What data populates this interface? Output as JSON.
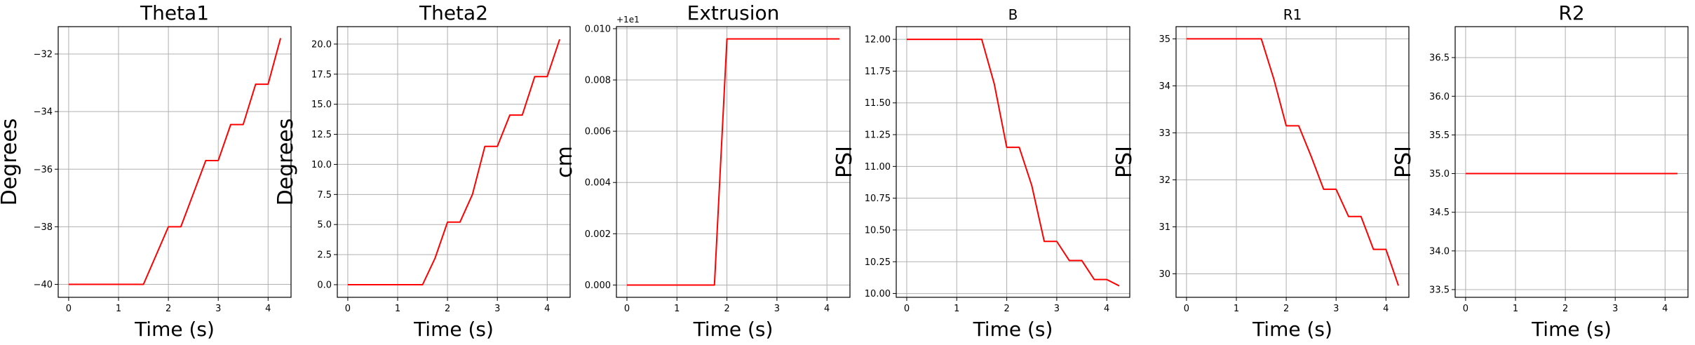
{
  "figure": {
    "line_color": "#ff0000",
    "grid_color": "#b0b0b0",
    "axis_color": "#000000"
  },
  "chart_data": [
    {
      "type": "line",
      "title": "Theta1",
      "xlabel": "Time (s)",
      "ylabel": "Degrees",
      "offset_label": "",
      "xlim": [
        -0.21,
        4.46
      ],
      "ylim": [
        -40.45,
        -31.05
      ],
      "xticks": [
        0,
        1,
        2,
        3,
        4
      ],
      "xtick_labels": [
        "0",
        "1",
        "2",
        "3",
        "4"
      ],
      "yticks": [
        -40,
        -38,
        -36,
        -34,
        -32
      ],
      "ytick_labels": [
        "−40",
        "−38",
        "−36",
        "−34",
        "−32"
      ],
      "grid": true,
      "series": [
        {
          "color": "#ff0000",
          "x": [
            0,
            0.25,
            0.5,
            0.75,
            1.0,
            1.25,
            1.5,
            1.75,
            2.0,
            2.25,
            2.5,
            2.75,
            3.0,
            3.25,
            3.5,
            3.75,
            4.0,
            4.25
          ],
          "y": [
            -40,
            -40,
            -40,
            -40,
            -40,
            -40,
            -40,
            -39.0,
            -38.0,
            -38.0,
            -36.85,
            -35.7,
            -35.7,
            -34.45,
            -34.45,
            -33.05,
            -33.05,
            -31.45
          ]
        }
      ]
    },
    {
      "type": "line",
      "title": "Theta2",
      "xlabel": "Time (s)",
      "ylabel": "Degrees",
      "offset_label": "",
      "xlim": [
        -0.21,
        4.46
      ],
      "ylim": [
        -1.05,
        21.45
      ],
      "xticks": [
        0,
        1,
        2,
        3,
        4
      ],
      "xtick_labels": [
        "0",
        "1",
        "2",
        "3",
        "4"
      ],
      "yticks": [
        0,
        2.5,
        5,
        7.5,
        10,
        12.5,
        15,
        17.5,
        20
      ],
      "ytick_labels": [
        "0.0",
        "2.5",
        "5.0",
        "7.5",
        "10.0",
        "12.5",
        "15.0",
        "17.5",
        "20.0"
      ],
      "grid": true,
      "series": [
        {
          "color": "#ff0000",
          "x": [
            0,
            0.25,
            0.5,
            0.75,
            1.0,
            1.25,
            1.5,
            1.75,
            2.0,
            2.25,
            2.5,
            2.75,
            3.0,
            3.25,
            3.5,
            3.75,
            4.0,
            4.25
          ],
          "y": [
            0,
            0,
            0,
            0,
            0,
            0,
            0,
            2.2,
            5.2,
            5.2,
            7.5,
            11.5,
            11.5,
            14.1,
            14.1,
            17.3,
            17.3,
            20.4
          ]
        }
      ]
    },
    {
      "type": "line",
      "title": "Extrusion",
      "xlabel": "Time (s)",
      "ylabel": "cm",
      "offset_label": "+1e1",
      "xlim": [
        -0.21,
        4.46
      ],
      "ylim": [
        -0.00048,
        0.01008
      ],
      "xticks": [
        0,
        1,
        2,
        3,
        4
      ],
      "xtick_labels": [
        "0",
        "1",
        "2",
        "3",
        "4"
      ],
      "yticks": [
        0,
        0.002,
        0.004,
        0.006,
        0.008,
        0.01
      ],
      "ytick_labels": [
        "0.000",
        "0.002",
        "0.004",
        "0.006",
        "0.008",
        "0.010"
      ],
      "grid": true,
      "series": [
        {
          "color": "#ff0000",
          "x": [
            0,
            0.25,
            0.5,
            0.75,
            1.0,
            1.25,
            1.5,
            1.75,
            2.0,
            2.25,
            2.5,
            2.75,
            3.0,
            3.25,
            3.5,
            3.75,
            4.0,
            4.25
          ],
          "y": [
            0,
            0,
            0,
            0,
            0,
            0,
            0,
            0,
            0.0096,
            0.0096,
            0.0096,
            0.0096,
            0.0096,
            0.0096,
            0.0096,
            0.0096,
            0.0096,
            0.0096
          ]
        }
      ]
    },
    {
      "type": "line",
      "title": "B",
      "xlabel": "Time (s)",
      "ylabel": "PSI",
      "offset_label": "",
      "xlim": [
        -0.21,
        4.46
      ],
      "ylim": [
        9.97,
        12.1
      ],
      "xticks": [
        0,
        1,
        2,
        3,
        4
      ],
      "xtick_labels": [
        "0",
        "1",
        "2",
        "3",
        "4"
      ],
      "yticks": [
        10.0,
        10.25,
        10.5,
        10.75,
        11.0,
        11.25,
        11.5,
        11.75,
        12.0
      ],
      "ytick_labels": [
        "10.00",
        "10.25",
        "10.50",
        "10.75",
        "11.00",
        "11.25",
        "11.50",
        "11.75",
        "12.00"
      ],
      "grid": true,
      "series": [
        {
          "color": "#ff0000",
          "x": [
            0,
            0.25,
            0.5,
            0.75,
            1.0,
            1.25,
            1.5,
            1.75,
            2.0,
            2.25,
            2.5,
            2.75,
            3.0,
            3.25,
            3.5,
            3.75,
            4.0,
            4.25
          ],
          "y": [
            12,
            12,
            12,
            12,
            12,
            12,
            12,
            11.65,
            11.15,
            11.15,
            10.85,
            10.41,
            10.41,
            10.26,
            10.26,
            10.11,
            10.11,
            10.06
          ]
        }
      ]
    },
    {
      "type": "line",
      "title": "R1",
      "xlabel": "Time (s)",
      "ylabel": "PSI",
      "offset_label": "",
      "xlim": [
        -0.21,
        4.46
      ],
      "ylim": [
        29.5,
        35.26
      ],
      "xticks": [
        0,
        1,
        2,
        3,
        4
      ],
      "xtick_labels": [
        "0",
        "1",
        "2",
        "3",
        "4"
      ],
      "yticks": [
        30,
        31,
        32,
        33,
        34,
        35
      ],
      "ytick_labels": [
        "30",
        "31",
        "32",
        "33",
        "34",
        "35"
      ],
      "grid": true,
      "series": [
        {
          "color": "#ff0000",
          "x": [
            0,
            0.25,
            0.5,
            0.75,
            1.0,
            1.25,
            1.5,
            1.75,
            2.0,
            2.25,
            2.5,
            2.75,
            3.0,
            3.25,
            3.5,
            3.75,
            4.0,
            4.25
          ],
          "y": [
            35,
            35,
            35,
            35,
            35,
            35,
            35,
            34.15,
            33.15,
            33.15,
            32.5,
            31.8,
            31.8,
            31.22,
            31.22,
            30.52,
            30.52,
            29.75
          ]
        }
      ]
    },
    {
      "type": "line",
      "title": "R2",
      "xlabel": "Time (s)",
      "ylabel": "PSI",
      "offset_label": "",
      "xlim": [
        -0.21,
        4.46
      ],
      "ylim": [
        33.4,
        36.9
      ],
      "xticks": [
        0,
        1,
        2,
        3,
        4
      ],
      "xtick_labels": [
        "0",
        "1",
        "2",
        "3",
        "4"
      ],
      "yticks": [
        33.5,
        34.0,
        34.5,
        35.0,
        35.5,
        36.0,
        36.5
      ],
      "ytick_labels": [
        "33.5",
        "34.0",
        "34.5",
        "35.0",
        "35.5",
        "36.0",
        "36.5"
      ],
      "grid": true,
      "series": [
        {
          "color": "#ff0000",
          "x": [
            0,
            0.25,
            0.5,
            0.75,
            1.0,
            1.25,
            1.5,
            1.75,
            2.0,
            2.25,
            2.5,
            2.75,
            3.0,
            3.25,
            3.5,
            3.75,
            4.0,
            4.25
          ],
          "y": [
            35,
            35,
            35,
            35,
            35,
            35,
            35,
            35,
            35,
            35,
            35,
            35,
            35,
            35,
            35,
            35,
            35,
            35
          ]
        }
      ]
    }
  ]
}
